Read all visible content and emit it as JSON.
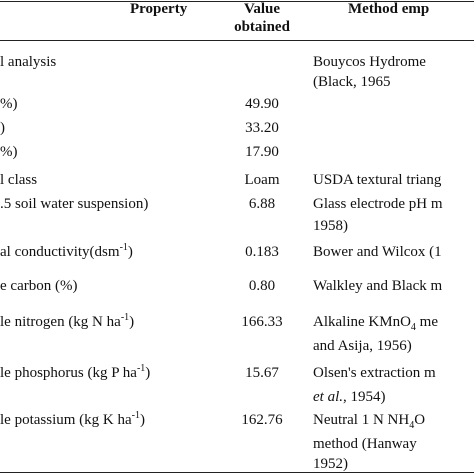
{
  "table": {
    "header": [
      "Property",
      "Value obtained",
      "Method emp"
    ],
    "rows": [
      {
        "property": [
          {
            "text": "l analysis"
          }
        ],
        "value": null,
        "method": [
          [
            {
              "text": "Bouycos Hydrome"
            }
          ],
          [
            {
              "text": "(Black, 1965"
            }
          ]
        ]
      },
      {
        "property": [
          {
            "text": "%)"
          }
        ],
        "value": "49.90",
        "method": []
      },
      {
        "property": [
          {
            "text": ")"
          }
        ],
        "value": "33.20",
        "method": []
      },
      {
        "property": [
          {
            "text": "%)"
          }
        ],
        "value": "17.90",
        "method": []
      },
      {
        "property": [
          {
            "text": "l class"
          }
        ],
        "value": "Loam",
        "method": [
          [
            {
              "text": "USDA textural triang"
            }
          ]
        ]
      },
      {
        "property": [
          {
            "text": ".5 soil water suspension)"
          }
        ],
        "value": "6.88",
        "method": [
          [
            {
              "text": "Glass electrode pH m"
            }
          ],
          [
            {
              "text": "1958)"
            }
          ]
        ]
      },
      {
        "property": [
          {
            "text": "al conductivity(dsm"
          },
          {
            "text": "-1",
            "style": "sup"
          },
          {
            "text": ")"
          }
        ],
        "value": "0.183",
        "method": [
          [
            {
              "text": "Bower and Wilcox (1"
            }
          ]
        ]
      },
      {
        "property": [
          {
            "text": "e carbon (%)"
          }
        ],
        "value": "0.80",
        "method": [
          [
            {
              "text": "Walkley and Black m"
            }
          ]
        ]
      },
      {
        "property": [
          {
            "text": "le nitrogen (kg N ha"
          },
          {
            "text": "-1",
            "style": "sup"
          },
          {
            "text": ")"
          }
        ],
        "value": "166.33",
        "method": [
          [
            {
              "text": "Alkaline KMnO"
            },
            {
              "text": "4",
              "style": "sub"
            },
            {
              "text": " me"
            }
          ],
          [
            {
              "text": "and Asija, 1956)"
            }
          ]
        ]
      },
      {
        "property": [
          {
            "text": "le phosphorus (kg P ha"
          },
          {
            "text": "-1",
            "style": "sup"
          },
          {
            "text": ")"
          }
        ],
        "value": "15.67",
        "method": [
          [
            {
              "text": "Olsen's extraction m"
            }
          ],
          [
            {
              "text": "et al.",
              "style": "i"
            },
            {
              "text": ", 1954)"
            }
          ]
        ]
      },
      {
        "property": [
          {
            "text": "le potassium (kg K ha"
          },
          {
            "text": "-1",
            "style": "sup"
          },
          {
            "text": ")"
          }
        ],
        "value": "162.76",
        "method": [
          [
            {
              "text": "Neutral 1 N NH"
            },
            {
              "text": "4",
              "style": "sub"
            },
            {
              "text": "O"
            }
          ],
          [
            {
              "text": "method (Hanway"
            }
          ],
          [
            {
              "text": "1952)"
            }
          ]
        ]
      }
    ]
  }
}
